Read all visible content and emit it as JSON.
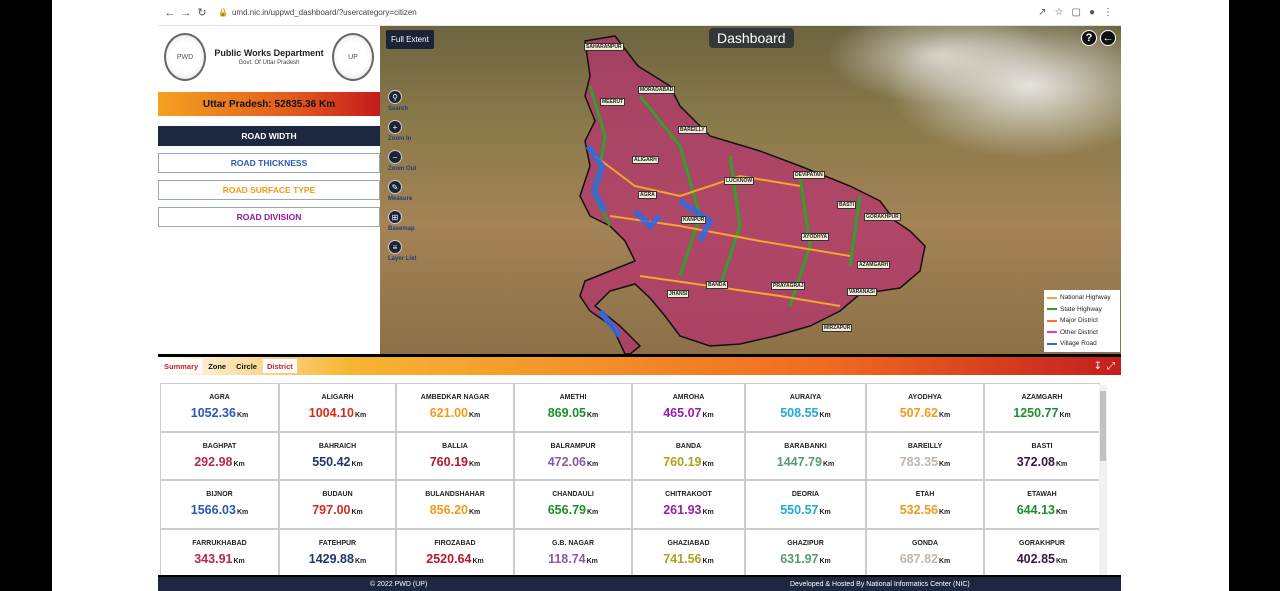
{
  "browser": {
    "url": "umd.nic.in/uppwd_dashboard/?usercategory=citizen"
  },
  "header": {
    "dept_name": "Public Works Department",
    "dept_sub": "Govt. Of Uttar Pradesh"
  },
  "total": "Uttar Pradesh: 52835.36 Km",
  "menu": [
    "ROAD WIDTH",
    "ROAD THICKNESS",
    "ROAD SURFACE TYPE",
    "ROAD DIVISION"
  ],
  "menu_colors": [
    "#ffffff",
    "#2a5bb8",
    "#f09a16",
    "#8e1a9a"
  ],
  "map": {
    "full_extent": "Full Extent",
    "title": "Dashboard",
    "help": "?",
    "tools": [
      "Search",
      "Zoom In",
      "Zoom Out",
      "Measure",
      "Basemap",
      "Layer List"
    ],
    "cities": [
      "SAHARANPUR",
      "MORADABAD",
      "MEERUT",
      "BAREILLY",
      "ALIGARH",
      "LUCKNOW",
      "DEVIPATAN",
      "AGRA",
      "BASTI",
      "GORAKHPUR",
      "KANPUR",
      "AYODHYA",
      "AZAMGARH",
      "JHANSI",
      "BANDA",
      "PRAYAGRAJ",
      "VARANASI",
      "MIRZAPUR"
    ],
    "legend": [
      {
        "label": "National Highway",
        "color": "#f2a62a"
      },
      {
        "label": "State Highway",
        "color": "#33a02c"
      },
      {
        "label": "Major District",
        "color": "#ff6f1e"
      },
      {
        "label": "Other District",
        "color": "#e33bc9"
      },
      {
        "label": "Village Road",
        "color": "#2f6be0"
      }
    ]
  },
  "tabs": [
    "Summary",
    "Zone",
    "Circle",
    "District"
  ],
  "unit": "Km",
  "districts": [
    {
      "name": "AGRA",
      "value": "1052.36",
      "color": "#2a58b5"
    },
    {
      "name": "ALIGARH",
      "value": "1004.10",
      "color": "#d62b1e"
    },
    {
      "name": "AMBEDKAR NAGAR",
      "value": "621.00",
      "color": "#f29a1a"
    },
    {
      "name": "AMETHI",
      "value": "869.05",
      "color": "#1d8f2a"
    },
    {
      "name": "AMROHA",
      "value": "465.07",
      "color": "#9a1da8"
    },
    {
      "name": "AURAIYA",
      "value": "508.55",
      "color": "#1eaad3"
    },
    {
      "name": "AYODHYA",
      "value": "507.62",
      "color": "#f29a1a"
    },
    {
      "name": "AZAMGARH",
      "value": "1250.77",
      "color": "#1d8f2a"
    },
    {
      "name": "BAGHPAT",
      "value": "292.98",
      "color": "#b5294a"
    },
    {
      "name": "BAHRAICH",
      "value": "550.42",
      "color": "#22356e"
    },
    {
      "name": "BALLIA",
      "value": "760.19",
      "color": "#b8162a"
    },
    {
      "name": "BALRAMPUR",
      "value": "472.06",
      "color": "#8a5aa6"
    },
    {
      "name": "BANDA",
      "value": "760.19",
      "color": "#a8a21e"
    },
    {
      "name": "BARABANKI",
      "value": "1447.79",
      "color": "#5a9a72"
    },
    {
      "name": "BAREILLY",
      "value": "783.35",
      "color": "#c2b5ad"
    },
    {
      "name": "BASTI",
      "value": "372.08",
      "color": "#3a1a3e"
    },
    {
      "name": "BIJNOR",
      "value": "1566.03",
      "color": "#2a58b5"
    },
    {
      "name": "BUDAUN",
      "value": "797.00",
      "color": "#d62b1e"
    },
    {
      "name": "BULANDSHAHAR",
      "value": "856.20",
      "color": "#f29a1a"
    },
    {
      "name": "CHANDAULI",
      "value": "656.79",
      "color": "#1d8f2a"
    },
    {
      "name": "CHITRAKOOT",
      "value": "261.93",
      "color": "#9a1da8"
    },
    {
      "name": "DEORIA",
      "value": "550.57",
      "color": "#1eaad3"
    },
    {
      "name": "ETAH",
      "value": "532.56",
      "color": "#f29a1a"
    },
    {
      "name": "ETAWAH",
      "value": "644.13",
      "color": "#1d8f2a"
    },
    {
      "name": "FARRUKHABAD",
      "value": "343.91",
      "color": "#b5294a"
    },
    {
      "name": "FATEHPUR",
      "value": "1429.88",
      "color": "#22356e"
    },
    {
      "name": "FIROZABAD",
      "value": "2520.64",
      "color": "#b8162a"
    },
    {
      "name": "G.B. NAGAR",
      "value": "118.74",
      "color": "#8a5aa6"
    },
    {
      "name": "GHAZIABAD",
      "value": "741.56",
      "color": "#a8a21e"
    },
    {
      "name": "GHAZIPUR",
      "value": "631.97",
      "color": "#5a9a72"
    },
    {
      "name": "GONDA",
      "value": "687.82",
      "color": "#c2b5ad"
    },
    {
      "name": "GORAKHPUR",
      "value": "402.85",
      "color": "#3a1a3e"
    }
  ],
  "footer": {
    "left": "© 2022 PWD (UP)",
    "right": "Developed & Hosted By National Informatics Center (NIC)"
  }
}
